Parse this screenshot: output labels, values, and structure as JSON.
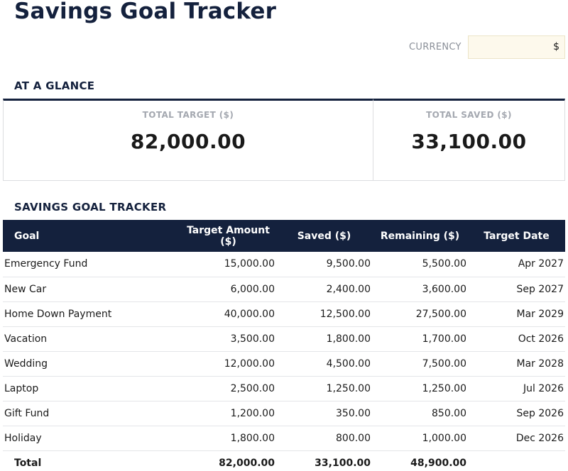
{
  "title": "Savings Goal Tracker",
  "currency": {
    "label": "CURRENCY",
    "value": "$"
  },
  "glance": {
    "heading": "AT A GLANCE",
    "total_target_label": "TOTAL TARGET ($)",
    "total_target_value": "82,000.00",
    "total_saved_label": "TOTAL SAVED ($)",
    "total_saved_value": "33,100.00"
  },
  "tracker": {
    "heading": "SAVINGS GOAL TRACKER",
    "columns": [
      "Goal",
      "Target Amount ($)",
      "Saved ($)",
      "Remaining ($)",
      "Target Date"
    ],
    "rows": [
      [
        "Emergency Fund",
        "15,000.00",
        "9,500.00",
        "5,500.00",
        "Apr 2027"
      ],
      [
        "New Car",
        "6,000.00",
        "2,400.00",
        "3,600.00",
        "Sep 2027"
      ],
      [
        "Home Down Payment",
        "40,000.00",
        "12,500.00",
        "27,500.00",
        "Mar 2029"
      ],
      [
        "Vacation",
        "3,500.00",
        "1,800.00",
        "1,700.00",
        "Oct 2026"
      ],
      [
        "Wedding",
        "12,000.00",
        "4,500.00",
        "7,500.00",
        "Mar 2028"
      ],
      [
        "Laptop",
        "2,500.00",
        "1,250.00",
        "1,250.00",
        "Jul 2026"
      ],
      [
        "Gift Fund",
        "1,200.00",
        "350.00",
        "850.00",
        "Sep 2026"
      ],
      [
        "Holiday",
        "1,800.00",
        "800.00",
        "1,000.00",
        "Dec 2026"
      ]
    ],
    "total": [
      "Total",
      "82,000.00",
      "33,100.00",
      "48,900.00",
      ""
    ]
  },
  "colors": {
    "header_bg": "#14213d",
    "currency_bg": "#fdf9ec",
    "title": "#14213d"
  }
}
